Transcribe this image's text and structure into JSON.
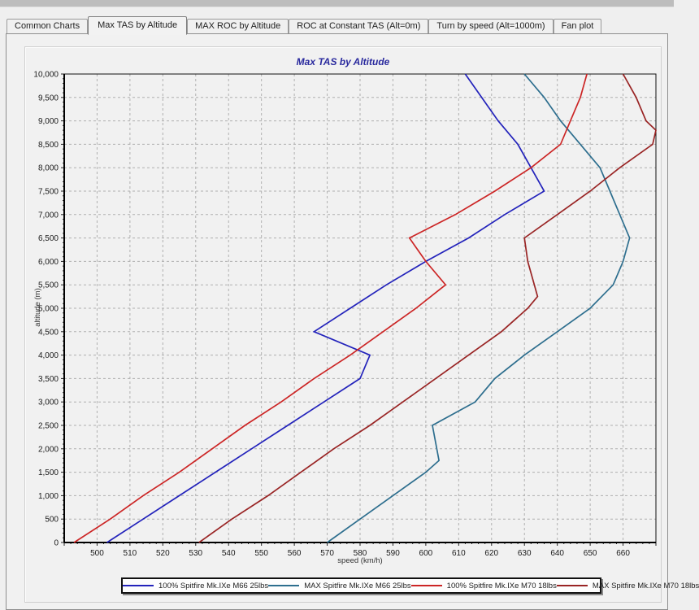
{
  "window": {
    "tabs": [
      {
        "label": "Common Charts",
        "active": false
      },
      {
        "label": "Max TAS by Altitude",
        "active": true
      },
      {
        "label": "MAX ROC by Altitude",
        "active": false
      },
      {
        "label": "ROC at Constant TAS (Alt=0m)",
        "active": false
      },
      {
        "label": "Turn by speed (Alt=1000m)",
        "active": false
      },
      {
        "label": "Fan plot",
        "active": false
      }
    ]
  },
  "chart_data": {
    "type": "line",
    "title": "Max TAS by Altitude",
    "xlabel": "speed (km/h)",
    "ylabel": "altitude (m)",
    "xlim": [
      490,
      670
    ],
    "ylim": [
      0,
      10000
    ],
    "x_label_range": [
      500,
      660
    ],
    "x_tick_step": 10,
    "x_minor_step": 2,
    "y_tick_step": 500,
    "y_minor_step": 100,
    "grid": "dashed",
    "legend_position": "bottom",
    "point_format": "[altitude_m, speed_kmh]",
    "series": [
      {
        "name": "100% Spitfire Mk.IXe M66 25lbs",
        "color": "#2323bb",
        "points": [
          [
            0,
            503
          ],
          [
            500,
            514
          ],
          [
            1000,
            525
          ],
          [
            1500,
            536
          ],
          [
            2000,
            547
          ],
          [
            2500,
            558
          ],
          [
            3000,
            569
          ],
          [
            3500,
            580
          ],
          [
            4000,
            583
          ],
          [
            4500,
            566
          ],
          [
            5000,
            577
          ],
          [
            5500,
            588
          ],
          [
            6000,
            600
          ],
          [
            6500,
            613
          ],
          [
            7000,
            624
          ],
          [
            7500,
            636
          ],
          [
            8000,
            632
          ],
          [
            8500,
            628
          ],
          [
            9000,
            622
          ],
          [
            9500,
            617
          ],
          [
            10000,
            612
          ]
        ]
      },
      {
        "name": "MAX Spitfire Mk.IXe M66 25lbs",
        "color": "#2d6e8e",
        "points": [
          [
            0,
            570
          ],
          [
            500,
            580
          ],
          [
            1000,
            590
          ],
          [
            1500,
            600
          ],
          [
            1750,
            604
          ],
          [
            2500,
            602
          ],
          [
            3000,
            615
          ],
          [
            3500,
            621
          ],
          [
            4000,
            630
          ],
          [
            4500,
            640
          ],
          [
            5000,
            650
          ],
          [
            5500,
            657
          ],
          [
            6000,
            660
          ],
          [
            6500,
            662
          ],
          [
            7000,
            659
          ],
          [
            7500,
            656
          ],
          [
            8000,
            653
          ],
          [
            8500,
            647
          ],
          [
            9000,
            641
          ],
          [
            9500,
            636
          ],
          [
            10000,
            630
          ]
        ]
      },
      {
        "name": "100% Spitfire Mk.IXe M70 18lbs",
        "color": "#cc2525",
        "points": [
          [
            0,
            493
          ],
          [
            500,
            504
          ],
          [
            1000,
            514
          ],
          [
            1500,
            525
          ],
          [
            2000,
            535
          ],
          [
            2500,
            545
          ],
          [
            3000,
            556
          ],
          [
            3500,
            566
          ],
          [
            4000,
            577
          ],
          [
            4500,
            587
          ],
          [
            5000,
            597
          ],
          [
            5500,
            606
          ],
          [
            6000,
            600
          ],
          [
            6500,
            595
          ],
          [
            7000,
            609
          ],
          [
            7500,
            621
          ],
          [
            8000,
            632
          ],
          [
            8500,
            641
          ],
          [
            9000,
            644
          ],
          [
            9500,
            647
          ],
          [
            10000,
            649
          ]
        ]
      },
      {
        "name": "MAX Spitfire Mk.IXe M70 18lbs",
        "color": "#992424",
        "points": [
          [
            0,
            531
          ],
          [
            500,
            541
          ],
          [
            1000,
            552
          ],
          [
            1500,
            562
          ],
          [
            2000,
            572
          ],
          [
            2500,
            583
          ],
          [
            3000,
            593
          ],
          [
            3500,
            603
          ],
          [
            4000,
            613
          ],
          [
            4500,
            623
          ],
          [
            5000,
            631
          ],
          [
            5250,
            634
          ],
          [
            5500,
            633
          ],
          [
            6000,
            631
          ],
          [
            6500,
            630
          ],
          [
            7000,
            640
          ],
          [
            7500,
            650
          ],
          [
            8000,
            659
          ],
          [
            8500,
            669
          ],
          [
            8800,
            670
          ],
          [
            9000,
            667
          ],
          [
            9500,
            664
          ],
          [
            10000,
            660
          ]
        ]
      }
    ]
  }
}
